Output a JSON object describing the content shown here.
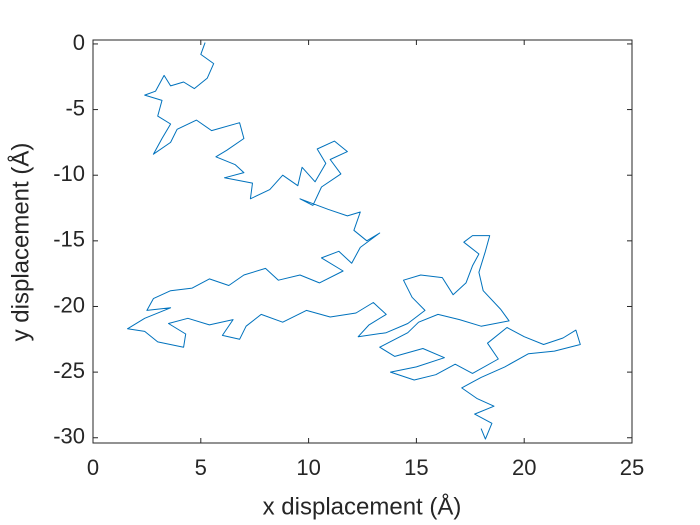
{
  "chart_data": {
    "type": "line",
    "xlabel": "x displacement (Å)",
    "ylabel": "y displacement (Å)",
    "xlim": [
      0,
      25
    ],
    "ylim": [
      -30.4,
      0.3
    ],
    "xticks": [
      0,
      5,
      10,
      15,
      20,
      25
    ],
    "yticks": [
      -30,
      -25,
      -20,
      -15,
      -10,
      -5,
      0
    ],
    "series": [
      {
        "color": "#0072BD",
        "x": [
          5.2,
          5.0,
          5.6,
          5.3,
          4.7,
          4.2,
          3.6,
          3.3,
          2.9,
          2.4,
          3.2,
          3.0,
          3.6,
          3.2,
          2.8,
          3.6,
          3.9,
          4.8,
          5.5,
          6.8,
          7.0,
          6.2,
          5.7,
          6.6,
          7.0,
          6.1,
          7.4,
          7.3,
          8.2,
          8.8,
          9.5,
          9.7,
          10.3,
          10.8,
          10.4,
          11.2,
          11.8,
          11.0,
          11.5,
          10.6,
          10.2,
          9.6,
          10.9,
          11.8,
          12.4,
          12.1,
          12.7,
          13.3,
          12.4,
          12.0,
          11.4,
          10.6,
          11.6,
          10.5,
          9.6,
          8.6,
          8.0,
          7.0,
          6.3,
          5.4,
          4.6,
          3.6,
          2.8,
          2.5,
          3.6,
          2.4,
          1.6,
          2.4,
          3.0,
          4.2,
          4.3,
          3.5,
          4.4,
          5.4,
          6.5,
          6.0,
          6.8,
          7.1,
          7.8,
          8.8,
          9.9,
          11.0,
          12.2,
          13.0,
          13.6,
          12.8,
          12.3,
          13.6,
          14.6,
          15.4,
          14.8,
          14.4,
          15.2,
          16.2,
          16.7,
          17.3,
          17.6,
          17.9,
          17.2,
          17.6,
          18.4,
          18.2,
          17.9,
          18.1,
          18.9,
          19.3,
          18.0,
          17.0,
          16.0,
          15.1,
          14.6,
          13.3,
          14.0,
          15.3,
          16.3,
          15.0,
          13.8,
          14.9,
          15.9,
          16.8,
          17.6,
          18.8,
          18.3,
          19.2,
          20.0,
          20.9,
          21.8,
          22.4,
          22.6,
          21.4,
          20.2,
          19.1,
          18.0,
          17.1,
          17.8,
          18.6,
          17.7,
          18.5,
          18.2,
          18.0
        ],
        "values": [
          0.1,
          -0.8,
          -1.5,
          -2.6,
          -3.4,
          -2.9,
          -3.2,
          -2.4,
          -3.6,
          -3.9,
          -4.3,
          -5.5,
          -6.1,
          -7.2,
          -8.4,
          -7.5,
          -6.5,
          -5.8,
          -6.6,
          -6.0,
          -7.2,
          -8.1,
          -8.6,
          -9.2,
          -9.8,
          -10.2,
          -10.6,
          -11.8,
          -11.1,
          -10.0,
          -10.8,
          -9.4,
          -10.5,
          -9.1,
          -8.0,
          -7.4,
          -8.2,
          -8.8,
          -9.9,
          -10.9,
          -12.3,
          -11.8,
          -12.6,
          -13.1,
          -12.8,
          -14.2,
          -15.0,
          -14.4,
          -15.5,
          -16.7,
          -15.8,
          -16.3,
          -17.3,
          -18.2,
          -17.6,
          -18.0,
          -17.1,
          -17.6,
          -18.4,
          -17.9,
          -18.6,
          -18.8,
          -19.4,
          -20.3,
          -20.1,
          -20.9,
          -21.7,
          -21.9,
          -22.7,
          -23.1,
          -22.1,
          -21.3,
          -20.9,
          -21.4,
          -21.0,
          -22.2,
          -22.5,
          -21.5,
          -20.6,
          -21.2,
          -20.3,
          -20.8,
          -20.5,
          -19.7,
          -20.6,
          -21.4,
          -22.3,
          -22.0,
          -21.3,
          -20.3,
          -19.3,
          -18.0,
          -17.6,
          -17.8,
          -19.1,
          -18.2,
          -16.9,
          -16.0,
          -15.1,
          -14.6,
          -14.6,
          -15.8,
          -17.4,
          -18.8,
          -20.2,
          -21.1,
          -21.5,
          -21.0,
          -20.6,
          -21.2,
          -22.0,
          -23.1,
          -23.8,
          -23.2,
          -23.9,
          -24.6,
          -25.0,
          -25.6,
          -25.2,
          -24.4,
          -25.1,
          -24.0,
          -22.8,
          -21.6,
          -22.3,
          -22.9,
          -22.4,
          -21.8,
          -22.9,
          -23.4,
          -23.6,
          -24.6,
          -25.4,
          -26.2,
          -27.0,
          -27.6,
          -28.2,
          -28.9,
          -30.1,
          -29.3
        ]
      }
    ]
  }
}
